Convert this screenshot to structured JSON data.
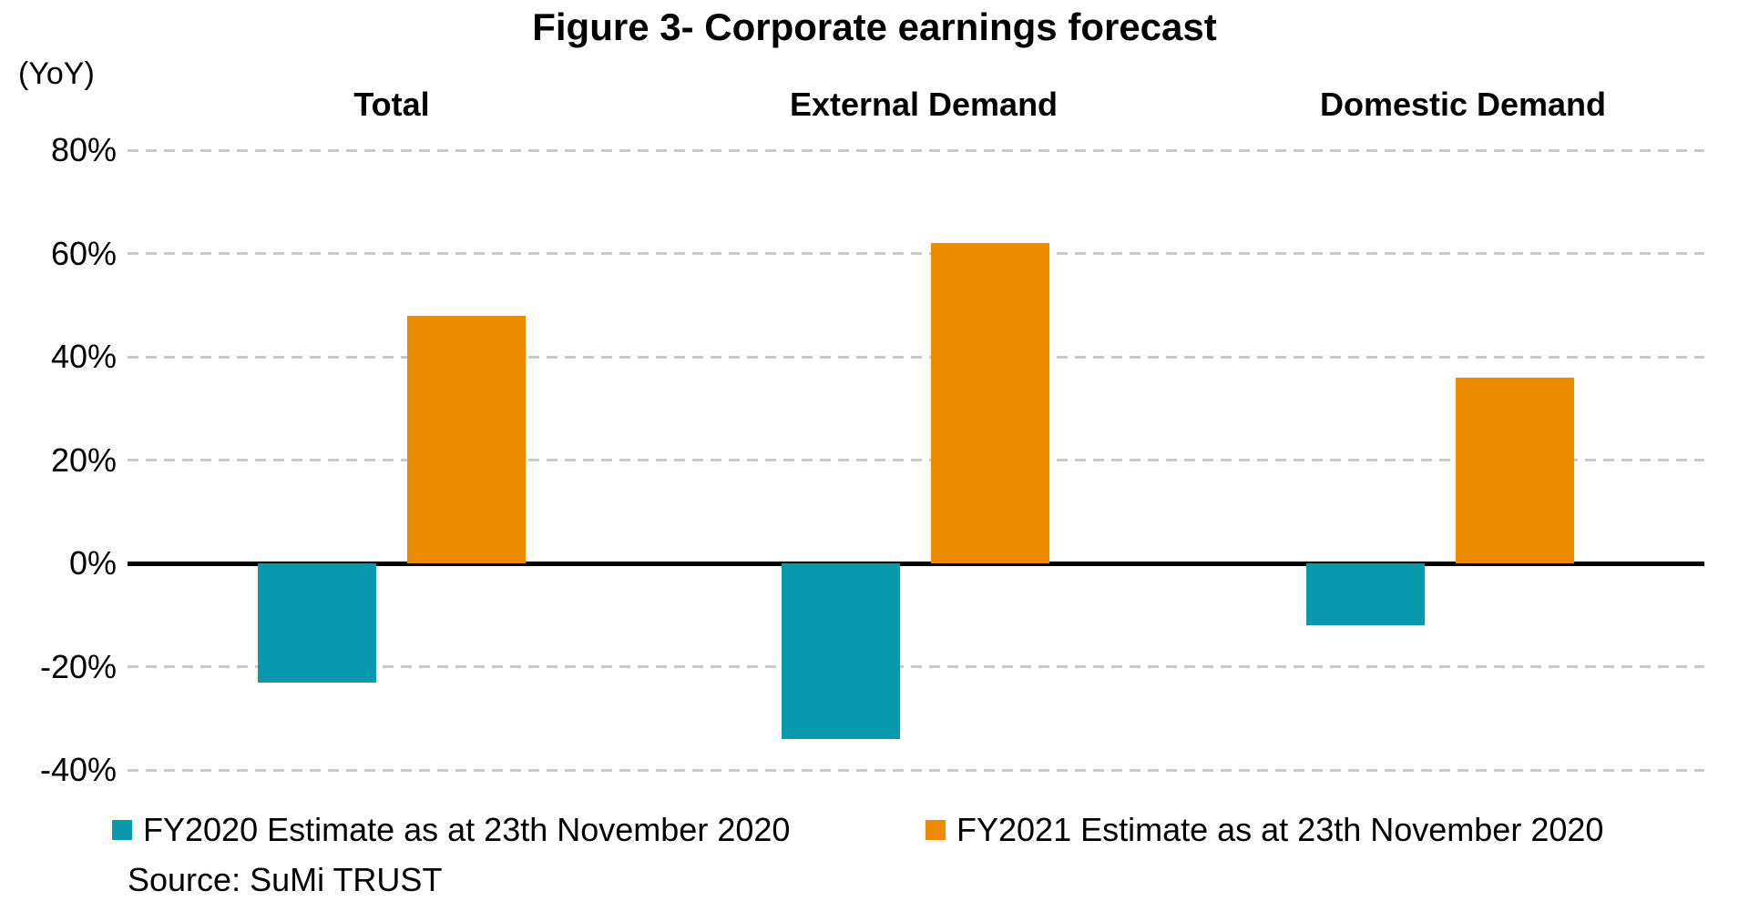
{
  "chart_data": {
    "type": "bar",
    "title": "Figure 3- Corporate earnings forecast",
    "ylabel": "(YoY)",
    "categories": [
      "Total",
      "External Demand",
      "Domestic Demand"
    ],
    "series": [
      {
        "name": "FY2020 Estimate as at 23th November 2020",
        "color": "#0999AE",
        "values": [
          -23,
          -34,
          -12
        ]
      },
      {
        "name": "FY2021 Estimate as at 23th November 2020",
        "color": "#ED8B00",
        "values": [
          48,
          62,
          36
        ]
      }
    ],
    "ylim": [
      -40,
      80
    ],
    "ytick_step": 20,
    "ytick_labels": [
      "80%",
      "60%",
      "40%",
      "20%",
      "0%",
      "-20%",
      "-40%"
    ],
    "grid": "horizontal-dashed",
    "zero_line": "solid-black",
    "legend_position": "bottom",
    "source": "Source: SuMi TRUST"
  }
}
